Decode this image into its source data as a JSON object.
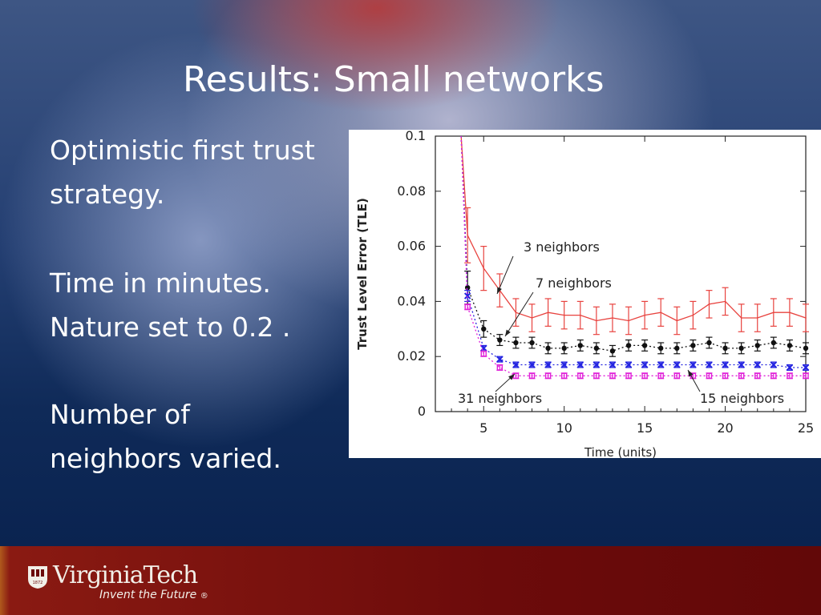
{
  "slide": {
    "title": "Results: Small networks",
    "body_lines": [
      "Optimistic first trust",
      "strategy.",
      "Time in minutes.",
      "Nature set to 0.2 .",
      "Number of",
      "neighbors varied."
    ]
  },
  "footer": {
    "logo_text": "VirginiaTech",
    "tagline": "Invent the Future",
    "registered": "®",
    "year": "1872"
  },
  "colors": {
    "series_3": "#e8433f",
    "series_7": "#111111",
    "series_15": "#2323e0",
    "series_31": "#e020d8"
  },
  "chart_data": {
    "type": "line",
    "xlabel": "Time (units)",
    "ylabel": "Trust Level Error (TLE)",
    "xlim": [
      2,
      25
    ],
    "ylim": [
      0,
      0.1
    ],
    "x_ticks": [
      5,
      10,
      15,
      20,
      25
    ],
    "y_ticks": [
      0,
      0.02,
      0.04,
      0.06,
      0.08,
      0.1
    ],
    "y_tick_labels": [
      "0",
      "0.02",
      "0.04",
      "0.06",
      "0.08",
      "0.1"
    ],
    "grid": false,
    "x": [
      4,
      5,
      6,
      7,
      8,
      9,
      10,
      11,
      12,
      13,
      14,
      15,
      16,
      17,
      18,
      19,
      20,
      21,
      22,
      23,
      24,
      25
    ],
    "series": [
      {
        "name": "3 neighbors",
        "values": [
          0.064,
          0.052,
          0.044,
          0.036,
          0.034,
          0.036,
          0.035,
          0.035,
          0.033,
          0.034,
          0.033,
          0.035,
          0.036,
          0.033,
          0.035,
          0.039,
          0.04,
          0.034,
          0.034,
          0.036,
          0.036,
          0.034
        ],
        "errors": [
          0.01,
          0.008,
          0.006,
          0.005,
          0.005,
          0.005,
          0.005,
          0.005,
          0.005,
          0.005,
          0.005,
          0.005,
          0.005,
          0.005,
          0.005,
          0.005,
          0.005,
          0.005,
          0.005,
          0.005,
          0.005,
          0.005
        ]
      },
      {
        "name": "7 neighbors",
        "values": [
          0.045,
          0.03,
          0.026,
          0.025,
          0.025,
          0.023,
          0.023,
          0.024,
          0.023,
          0.022,
          0.024,
          0.024,
          0.023,
          0.023,
          0.024,
          0.025,
          0.023,
          0.023,
          0.024,
          0.025,
          0.024,
          0.023
        ],
        "errors": [
          0.006,
          0.003,
          0.002,
          0.002,
          0.002,
          0.002,
          0.002,
          0.002,
          0.002,
          0.002,
          0.002,
          0.002,
          0.002,
          0.002,
          0.002,
          0.002,
          0.002,
          0.002,
          0.002,
          0.002,
          0.002,
          0.002
        ]
      },
      {
        "name": "15 neighbors",
        "values": [
          0.042,
          0.023,
          0.019,
          0.017,
          0.017,
          0.017,
          0.017,
          0.017,
          0.017,
          0.017,
          0.017,
          0.017,
          0.017,
          0.017,
          0.017,
          0.017,
          0.017,
          0.017,
          0.017,
          0.017,
          0.016,
          0.016
        ],
        "errors": [
          0.002,
          0.001,
          0.001,
          0.001,
          0.001,
          0.001,
          0.001,
          0.001,
          0.001,
          0.001,
          0.001,
          0.001,
          0.001,
          0.001,
          0.001,
          0.001,
          0.001,
          0.001,
          0.001,
          0.001,
          0.001,
          0.001
        ]
      },
      {
        "name": "31 neighbors",
        "values": [
          0.038,
          0.021,
          0.016,
          0.013,
          0.013,
          0.013,
          0.013,
          0.013,
          0.013,
          0.013,
          0.013,
          0.013,
          0.013,
          0.013,
          0.013,
          0.013,
          0.013,
          0.013,
          0.013,
          0.013,
          0.013,
          0.013
        ],
        "errors": [
          0.001,
          0.001,
          0.001,
          0.001,
          0.001,
          0.001,
          0.001,
          0.001,
          0.001,
          0.001,
          0.001,
          0.001,
          0.001,
          0.001,
          0.001,
          0.001,
          0.001,
          0.001,
          0.001,
          0.001,
          0.001,
          0.001
        ]
      }
    ],
    "annotations": [
      "3 neighbors",
      "7 neighbors",
      "15 neighbors",
      "31 neighbors"
    ]
  }
}
